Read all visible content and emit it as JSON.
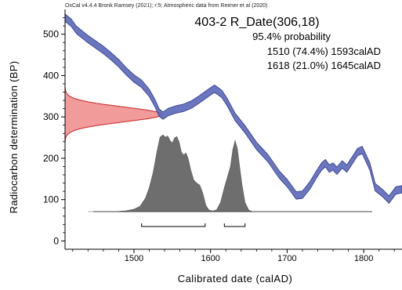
{
  "chart_data": {
    "type": "area",
    "header": "OxCal v4.4.4 Bronk Ramsey (2021); r:5; Atmospheric data from Reimer et al (2020)",
    "title": "403-2 R_Date(306,18)",
    "probability_label": "95.4% probability",
    "ranges": [
      {
        "text": "1510 (74.4%) 1593calAD",
        "from": 1510,
        "to": 1593,
        "percent": 74.4
      },
      {
        "text": "1618 (21.0%) 1645calAD",
        "from": 1618,
        "to": 1645,
        "percent": 21.0
      }
    ],
    "xlabel": "Calibrated date (calAD)",
    "ylabel": "Radiocarbon determination (BP)",
    "xlim": [
      1410,
      1850
    ],
    "ylim": [
      -20,
      560
    ],
    "xticks": [
      1500,
      1600,
      1700,
      1800
    ],
    "yticks": [
      0,
      100,
      200,
      300,
      400,
      500
    ],
    "radiocarbon_date": {
      "mean": 306,
      "sigma": 18
    },
    "calibration_curve": {
      "name": "IntCal20",
      "color": "#5a68b8",
      "band_halfwidth": 9,
      "points": [
        [
          1410,
          540
        ],
        [
          1418,
          528
        ],
        [
          1425,
          510
        ],
        [
          1440,
          488
        ],
        [
          1460,
          462
        ],
        [
          1470,
          447
        ],
        [
          1480,
          430
        ],
        [
          1490,
          410
        ],
        [
          1500,
          393
        ],
        [
          1510,
          380
        ],
        [
          1520,
          358
        ],
        [
          1527,
          335
        ],
        [
          1533,
          310
        ],
        [
          1538,
          303
        ],
        [
          1545,
          312
        ],
        [
          1555,
          318
        ],
        [
          1565,
          322
        ],
        [
          1575,
          330
        ],
        [
          1585,
          342
        ],
        [
          1597,
          358
        ],
        [
          1605,
          368
        ],
        [
          1610,
          362
        ],
        [
          1615,
          355
        ],
        [
          1622,
          335
        ],
        [
          1632,
          300
        ],
        [
          1645,
          270
        ],
        [
          1660,
          230
        ],
        [
          1675,
          200
        ],
        [
          1690,
          160
        ],
        [
          1700,
          140
        ],
        [
          1712,
          110
        ],
        [
          1720,
          112
        ],
        [
          1730,
          135
        ],
        [
          1738,
          160
        ],
        [
          1745,
          180
        ],
        [
          1750,
          188
        ],
        [
          1755,
          175
        ],
        [
          1760,
          180
        ],
        [
          1765,
          170
        ],
        [
          1772,
          185
        ],
        [
          1778,
          175
        ],
        [
          1785,
          195
        ],
        [
          1792,
          215
        ],
        [
          1798,
          220
        ],
        [
          1808,
          180
        ],
        [
          1815,
          130
        ],
        [
          1825,
          115
        ],
        [
          1833,
          100
        ],
        [
          1842,
          122
        ],
        [
          1850,
          125
        ]
      ]
    },
    "likelihood": {
      "color": "#f08a8a",
      "edge_color": "#cc2222"
    },
    "posterior": {
      "color": "#6e6e6e",
      "points": [
        [
          1440,
          0
        ],
        [
          1475,
          0
        ],
        [
          1490,
          3
        ],
        [
          1500,
          8
        ],
        [
          1508,
          18
        ],
        [
          1515,
          45
        ],
        [
          1520,
          80
        ],
        [
          1525,
          130
        ],
        [
          1530,
          200
        ],
        [
          1534,
          248
        ],
        [
          1538,
          256
        ],
        [
          1541,
          248
        ],
        [
          1544,
          252
        ],
        [
          1547,
          238
        ],
        [
          1550,
          228
        ],
        [
          1553,
          246
        ],
        [
          1556,
          250
        ],
        [
          1559,
          232
        ],
        [
          1562,
          198
        ],
        [
          1565,
          188
        ],
        [
          1568,
          196
        ],
        [
          1571,
          175
        ],
        [
          1574,
          140
        ],
        [
          1578,
          105
        ],
        [
          1582,
          95
        ],
        [
          1586,
          88
        ],
        [
          1590,
          60
        ],
        [
          1594,
          20
        ],
        [
          1598,
          5
        ],
        [
          1603,
          2
        ],
        [
          1608,
          6
        ],
        [
          1613,
          30
        ],
        [
          1618,
          80
        ],
        [
          1622,
          115
        ],
        [
          1626,
          150
        ],
        [
          1629,
          205
        ],
        [
          1632,
          237
        ],
        [
          1635,
          210
        ],
        [
          1638,
          150
        ],
        [
          1641,
          90
        ],
        [
          1645,
          30
        ],
        [
          1650,
          5
        ],
        [
          1655,
          0
        ],
        [
          1811,
          0
        ]
      ]
    },
    "grid": false,
    "legend": "none"
  }
}
